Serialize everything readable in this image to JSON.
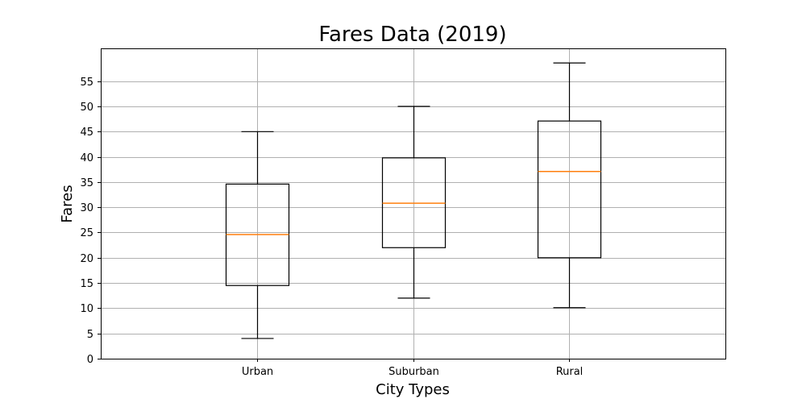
{
  "chart_data": {
    "type": "box",
    "title": "Fares Data (2019)",
    "xlabel": "City Types",
    "ylabel": "Fares",
    "ylim": [
      0,
      61.5
    ],
    "yticks": [
      0,
      5,
      10,
      15,
      20,
      25,
      30,
      35,
      40,
      45,
      50,
      55
    ],
    "grid": true,
    "colors": {
      "box": "#000000",
      "median": "#ff7f0e",
      "grid": "#b0b0b0"
    },
    "categories": [
      "Urban",
      "Suburban",
      "Rural"
    ],
    "boxes": [
      {
        "category": "Urban",
        "whisker_low": 4.0,
        "q1": 14.5,
        "median": 24.6,
        "q3": 34.6,
        "whisker_high": 45.0
      },
      {
        "category": "Suburban",
        "whisker_low": 12.0,
        "q1": 22.0,
        "median": 30.8,
        "q3": 39.8,
        "whisker_high": 50.0
      },
      {
        "category": "Rural",
        "whisker_low": 10.1,
        "q1": 20.0,
        "median": 37.1,
        "q3": 47.1,
        "whisker_high": 58.6
      }
    ]
  }
}
